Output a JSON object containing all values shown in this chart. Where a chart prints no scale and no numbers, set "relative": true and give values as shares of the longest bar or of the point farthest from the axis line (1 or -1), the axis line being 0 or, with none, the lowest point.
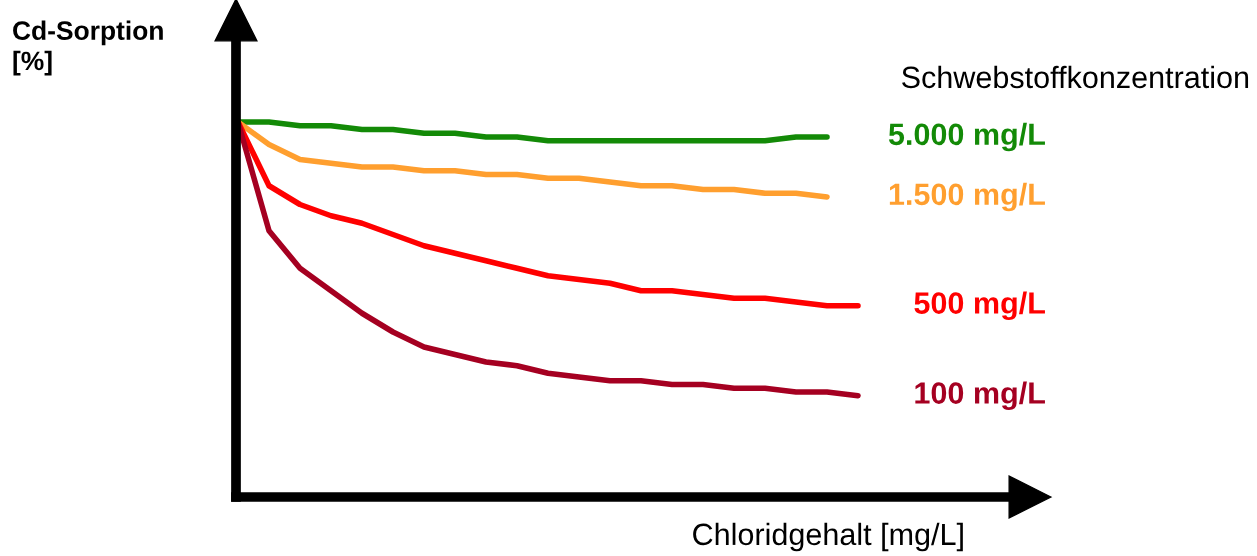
{
  "chart_data": {
    "type": "line",
    "relative": true,
    "xlabel": "Chloridgehalt [mg/L]",
    "ylabel": "Cd-Sorption\n[%]",
    "legend_title": "Schwebstoffkonzentration",
    "legend": "right",
    "categories": [
      null,
      null,
      null,
      null,
      null,
      null,
      null,
      null,
      null,
      null,
      null,
      null,
      null,
      null,
      null,
      null,
      null,
      null,
      null,
      null,
      null
    ],
    "series": [
      {
        "name": "5.000 mg/L",
        "color": "#138a07",
        "values": [
          1,
          1,
          0.99,
          0.99,
          0.98,
          0.98,
          0.97,
          0.97,
          0.96,
          0.96,
          0.95,
          0.95,
          0.95,
          0.95,
          0.95,
          0.95,
          0.95,
          0.95,
          0.96,
          0.96,
          null
        ]
      },
      {
        "name": "1.500 mg/L",
        "color": "#ff9f2f",
        "values": [
          1,
          0.94,
          0.9,
          0.89,
          0.88,
          0.88,
          0.87,
          0.87,
          0.86,
          0.86,
          0.85,
          0.85,
          0.84,
          0.83,
          0.83,
          0.82,
          0.82,
          0.81,
          0.81,
          0.8,
          null
        ]
      },
      {
        "name": "500 mg/L",
        "color": "#ff0000",
        "values": [
          1,
          0.83,
          0.78,
          0.75,
          0.73,
          0.7,
          0.67,
          0.65,
          0.63,
          0.61,
          0.59,
          0.58,
          0.57,
          0.55,
          0.55,
          0.54,
          0.53,
          0.53,
          0.52,
          0.51,
          0.51
        ]
      },
      {
        "name": "100 mg/L",
        "color": "#a50021",
        "values": [
          1,
          0.71,
          0.61,
          0.55,
          0.49,
          0.44,
          0.4,
          0.38,
          0.36,
          0.35,
          0.33,
          0.32,
          0.31,
          0.31,
          0.3,
          0.3,
          0.29,
          0.29,
          0.28,
          0.28,
          0.27
        ]
      }
    ]
  }
}
